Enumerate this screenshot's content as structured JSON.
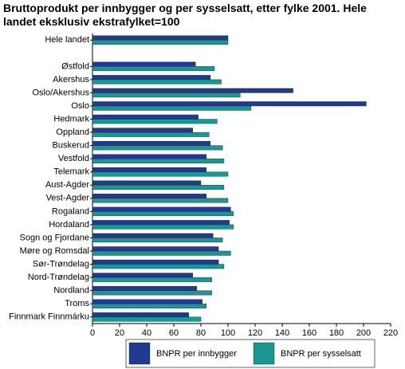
{
  "chart_data": {
    "type": "hbar",
    "title": "Bruttoprodukt per innbygger og per sysselsatt, etter fylke 2001. Hele landet eksklusiv ekstrafylket=100",
    "categories": [
      "Hele landet",
      null,
      "Østfold",
      "Akershus",
      "Oslo/Akershus",
      "Oslo",
      "Hedmark",
      "Oppland",
      "Buskerud",
      "Vestfold",
      "Telemark",
      "Aust-Agder",
      "Vest-Agder",
      "Rogaland",
      "Hordaland",
      "Sogn og Fjordane",
      "Møre og Romsdal",
      "Sør-Trøndelag",
      "Nord-Trøndelag",
      "Nordland",
      "Troms",
      "Finnmark Finnmárku"
    ],
    "series": [
      {
        "name": "BNPR per innbygger",
        "color": "#1f3a8f",
        "values": [
          100,
          null,
          76,
          87,
          148,
          202,
          78,
          74,
          87,
          84,
          84,
          80,
          84,
          102,
          101,
          89,
          93,
          93,
          74,
          77,
          81,
          71
        ]
      },
      {
        "name": "BNPR per sysselsatt",
        "color": "#1a9793",
        "values": [
          100,
          null,
          90,
          95,
          109,
          117,
          92,
          86,
          96,
          97,
          100,
          97,
          100,
          104,
          104,
          96,
          102,
          97,
          88,
          88,
          84,
          80
        ]
      }
    ],
    "xlim": [
      0,
      220
    ],
    "xticks": [
      0,
      20,
      40,
      60,
      80,
      100,
      120,
      140,
      160,
      180,
      200,
      220
    ],
    "grid": false,
    "legend": "bottom"
  }
}
